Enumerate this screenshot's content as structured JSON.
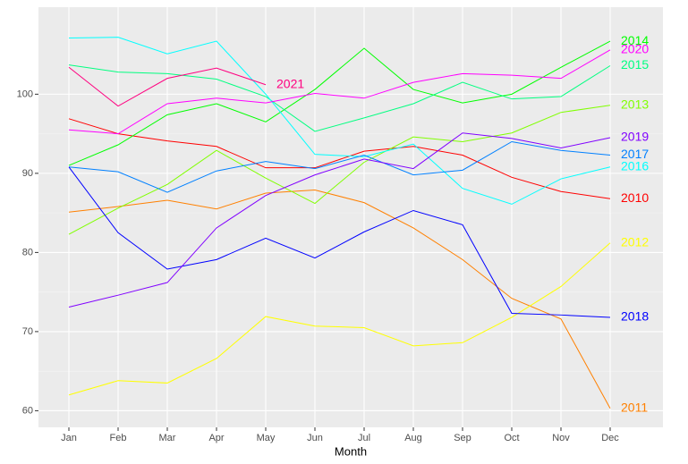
{
  "chart_data": {
    "type": "line",
    "x_label": "Month",
    "categories": [
      "Jan",
      "Feb",
      "Mar",
      "Apr",
      "May",
      "Jun",
      "Jul",
      "Aug",
      "Sep",
      "Oct",
      "Nov",
      "Dec"
    ],
    "ylim": [
      57.9,
      111
    ],
    "yticks": [
      60,
      70,
      80,
      90,
      100
    ],
    "grid": true,
    "series": [
      {
        "name": "2010",
        "color": "#ff0000",
        "values": [
          96.9,
          95.0,
          94.1,
          93.4,
          90.7,
          90.7,
          92.8,
          93.4,
          92.3,
          89.5,
          87.7,
          86.8
        ]
      },
      {
        "name": "2011",
        "color": "#ff8000",
        "values": [
          85.1,
          85.8,
          86.6,
          85.5,
          87.5,
          87.9,
          86.3,
          83.1,
          79.1,
          74.2,
          71.6,
          60.3
        ]
      },
      {
        "name": "2012",
        "color": "#ffff00",
        "values": [
          62.0,
          63.8,
          63.5,
          66.6,
          71.9,
          70.7,
          70.5,
          68.2,
          68.6,
          71.8,
          75.7,
          81.2
        ]
      },
      {
        "name": "2013",
        "color": "#80ff00",
        "values": [
          82.3,
          85.6,
          88.6,
          92.9,
          89.4,
          86.2,
          91.4,
          94.6,
          94.0,
          95.1,
          97.7,
          98.6
        ]
      },
      {
        "name": "2014",
        "color": "#00ff00",
        "values": [
          91.0,
          93.6,
          97.4,
          98.8,
          96.5,
          100.6,
          105.8,
          100.6,
          98.9,
          100.0,
          103.4,
          106.7
        ]
      },
      {
        "name": "2015",
        "color": "#00ff80",
        "values": [
          103.7,
          102.8,
          102.6,
          101.9,
          99.7,
          95.3,
          97.0,
          98.8,
          101.5,
          99.4,
          99.7,
          103.6
        ]
      },
      {
        "name": "2016",
        "color": "#00ffff",
        "values": [
          107.1,
          107.2,
          105.1,
          106.7,
          100.0,
          92.4,
          92.1,
          93.7,
          88.1,
          86.1,
          89.3,
          90.8
        ]
      },
      {
        "name": "2017",
        "color": "#0080ff",
        "values": [
          90.8,
          90.2,
          87.6,
          90.3,
          91.5,
          90.6,
          92.3,
          89.8,
          90.4,
          94.0,
          92.9,
          92.3
        ]
      },
      {
        "name": "2018",
        "color": "#0000ff",
        "values": [
          90.8,
          82.5,
          77.9,
          79.1,
          81.8,
          79.3,
          82.6,
          85.3,
          83.5,
          72.3,
          72.1,
          71.8
        ]
      },
      {
        "name": "2019",
        "color": "#8000ff",
        "values": [
          73.1,
          74.6,
          76.2,
          83.1,
          87.2,
          89.8,
          91.8,
          90.6,
          95.1,
          94.4,
          93.2,
          94.5
        ]
      },
      {
        "name": "2020",
        "color": "#ff00ff",
        "values": [
          95.5,
          95.0,
          98.8,
          99.5,
          98.9,
          100.1,
          99.5,
          101.5,
          102.6,
          102.4,
          102.0,
          105.6
        ]
      },
      {
        "name": "2021",
        "color": "#ff0080",
        "values": [
          103.4,
          98.5,
          102.0,
          103.3,
          101.2,
          null,
          null,
          null,
          null,
          null,
          null,
          null
        ]
      }
    ]
  }
}
